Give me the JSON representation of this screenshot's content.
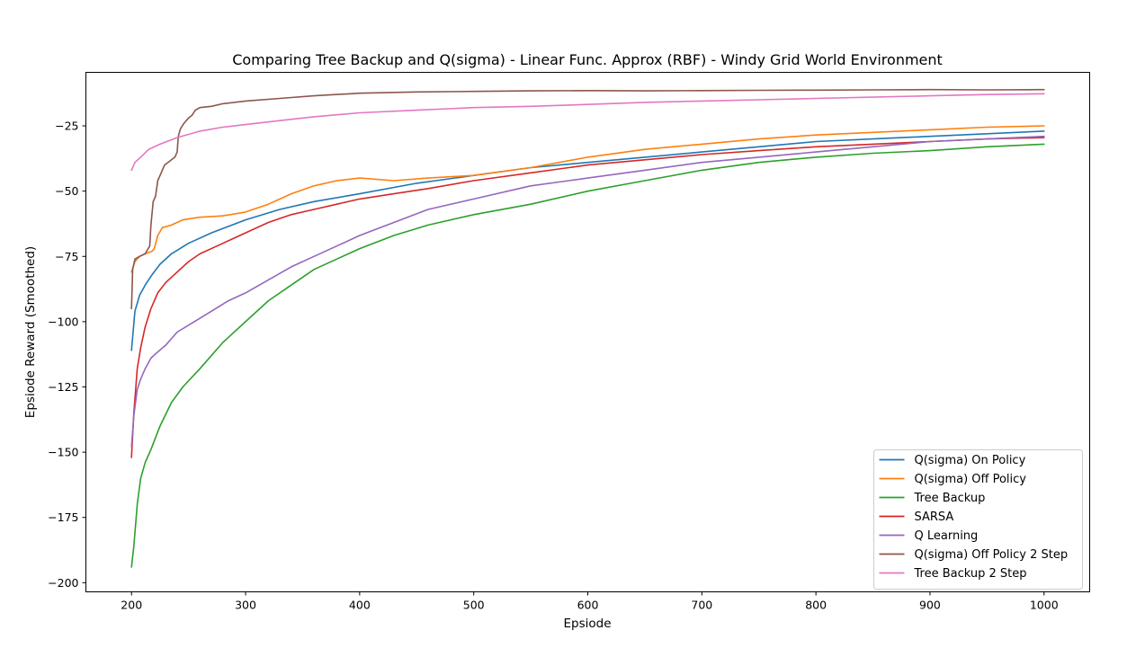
{
  "chart_data": {
    "type": "line",
    "title": "Comparing Tree Backup and Q(sigma) - Linear Func. Approx (RBF) - Windy Grid World Environment",
    "xlabel": "Epsiode",
    "ylabel": "Epsiode Reward (Smoothed)",
    "xlim": [
      160,
      1040
    ],
    "ylim": [
      -203.5,
      -4.5
    ],
    "xticks": [
      200,
      300,
      400,
      500,
      600,
      700,
      800,
      900,
      1000
    ],
    "yticks": [
      -200,
      -175,
      -150,
      -125,
      -100,
      -75,
      -50,
      -25
    ],
    "xtick_labels": [
      "200",
      "300",
      "400",
      "500",
      "600",
      "700",
      "800",
      "900",
      "1000"
    ],
    "ytick_labels": [
      "−200",
      "−175",
      "−150",
      "−125",
      "−100",
      "−75",
      "−50",
      "−25"
    ],
    "grid": false,
    "legend_position": "lower right",
    "series": [
      {
        "name": "Q(sigma) On Policy",
        "color": "#1f77b4",
        "x": [
          200,
          203,
          207,
          212,
          218,
          225,
          235,
          250,
          270,
          300,
          330,
          360,
          400,
          450,
          500,
          550,
          600,
          650,
          700,
          750,
          800,
          850,
          900,
          950,
          1000
        ],
        "y": [
          -111,
          -96,
          -90,
          -86,
          -82,
          -78,
          -74,
          -70,
          -66,
          -61,
          -57,
          -54,
          -51,
          -47,
          -44,
          -41,
          -39,
          -37,
          -35,
          -33,
          -31,
          -30,
          -29,
          -28,
          -27
        ]
      },
      {
        "name": "Q(sigma) Off Policy",
        "color": "#ff7f0e",
        "x": [
          200,
          203,
          207,
          212,
          218,
          220,
          223,
          227,
          235,
          245,
          260,
          280,
          300,
          320,
          340,
          360,
          380,
          400,
          430,
          460,
          500,
          550,
          600,
          650,
          700,
          750,
          800,
          850,
          900,
          950,
          1000
        ],
        "y": [
          -81,
          -77,
          -75,
          -74,
          -73,
          -72,
          -67,
          -64,
          -63,
          -61,
          -60,
          -59.5,
          -58,
          -55,
          -51,
          -48,
          -46,
          -45,
          -46,
          -45,
          -44,
          -41,
          -37,
          -34,
          -32,
          -30,
          -28.5,
          -27.5,
          -26.5,
          -25.5,
          -25
        ]
      },
      {
        "name": "Tree Backup",
        "color": "#2ca02c",
        "x": [
          200,
          202,
          205,
          208,
          212,
          217,
          225,
          235,
          245,
          260,
          280,
          300,
          320,
          340,
          360,
          380,
          400,
          430,
          460,
          500,
          550,
          600,
          650,
          700,
          750,
          800,
          850,
          900,
          950,
          1000
        ],
        "y": [
          -194,
          -186,
          -170,
          -160,
          -154,
          -149,
          -140,
          -131,
          -125,
          -118,
          -108,
          -100,
          -92,
          -86,
          -80,
          -76,
          -72,
          -67,
          -63,
          -59,
          -55,
          -50,
          -46,
          -42,
          -39,
          -37,
          -35.5,
          -34.5,
          -33,
          -32
        ]
      },
      {
        "name": "SARSA",
        "color": "#d62728",
        "x": [
          200,
          202,
          205,
          208,
          212,
          217,
          223,
          230,
          240,
          250,
          260,
          275,
          290,
          300,
          320,
          340,
          360,
          380,
          400,
          430,
          460,
          500,
          550,
          600,
          650,
          700,
          750,
          800,
          850,
          900,
          950,
          1000
        ],
        "y": [
          -152,
          -135,
          -118,
          -110,
          -102,
          -95,
          -89,
          -85,
          -81,
          -77,
          -74,
          -71,
          -68,
          -66,
          -62,
          -59,
          -57,
          -55,
          -53,
          -51,
          -49,
          -46,
          -43,
          -40,
          -38,
          -36,
          -34.5,
          -33,
          -32,
          -31,
          -30,
          -29.5
        ]
      },
      {
        "name": "Q Learning",
        "color": "#9467bd",
        "x": [
          200,
          202,
          205,
          208,
          212,
          217,
          222,
          230,
          240,
          255,
          270,
          285,
          300,
          320,
          340,
          360,
          380,
          400,
          430,
          460,
          500,
          550,
          600,
          650,
          700,
          750,
          800,
          850,
          900,
          950,
          1000
        ],
        "y": [
          -148,
          -136,
          -126,
          -122,
          -118,
          -114,
          -112,
          -109,
          -104,
          -100,
          -96,
          -92,
          -89,
          -84,
          -79,
          -75,
          -71,
          -67,
          -62,
          -57,
          -53,
          -48,
          -45,
          -42,
          -39,
          -37,
          -35,
          -33,
          -31,
          -30,
          -29
        ]
      },
      {
        "name": "Q(sigma) Off Policy 2 Step",
        "color": "#8c564b",
        "x": [
          200,
          201,
          203,
          207,
          212,
          216,
          217,
          219,
          221,
          223,
          226,
          229,
          232,
          235,
          238,
          240,
          241,
          243,
          246,
          250,
          253,
          256,
          260,
          270,
          280,
          300,
          330,
          360,
          400,
          450,
          500,
          550,
          600,
          650,
          700,
          750,
          800,
          850,
          900,
          950,
          1000
        ],
        "y": [
          -95,
          -80,
          -76,
          -75,
          -74,
          -71,
          -63,
          -54,
          -52,
          -46,
          -43,
          -40,
          -39,
          -38,
          -37,
          -35,
          -29,
          -26,
          -24,
          -22,
          -21,
          -19,
          -18,
          -17.5,
          -16.5,
          -15.5,
          -14.5,
          -13.5,
          -12.5,
          -12,
          -11.8,
          -11.6,
          -11.5,
          -11.6,
          -11.5,
          -11.4,
          -11.3,
          -11.2,
          -11.1,
          -11.2,
          -11.1
        ]
      },
      {
        "name": "Tree Backup 2 Step",
        "color": "#e377c2",
        "x": [
          200,
          203,
          208,
          215,
          225,
          240,
          260,
          280,
          300,
          330,
          360,
          400,
          450,
          500,
          550,
          600,
          650,
          700,
          750,
          800,
          850,
          900,
          950,
          1000
        ],
        "y": [
          -42,
          -39,
          -37,
          -34,
          -32,
          -29.5,
          -27,
          -25.5,
          -24.5,
          -23,
          -21.5,
          -20,
          -19,
          -18,
          -17.5,
          -16.8,
          -16,
          -15.5,
          -15,
          -14.5,
          -14,
          -13.5,
          -13,
          -12.7
        ]
      }
    ]
  }
}
